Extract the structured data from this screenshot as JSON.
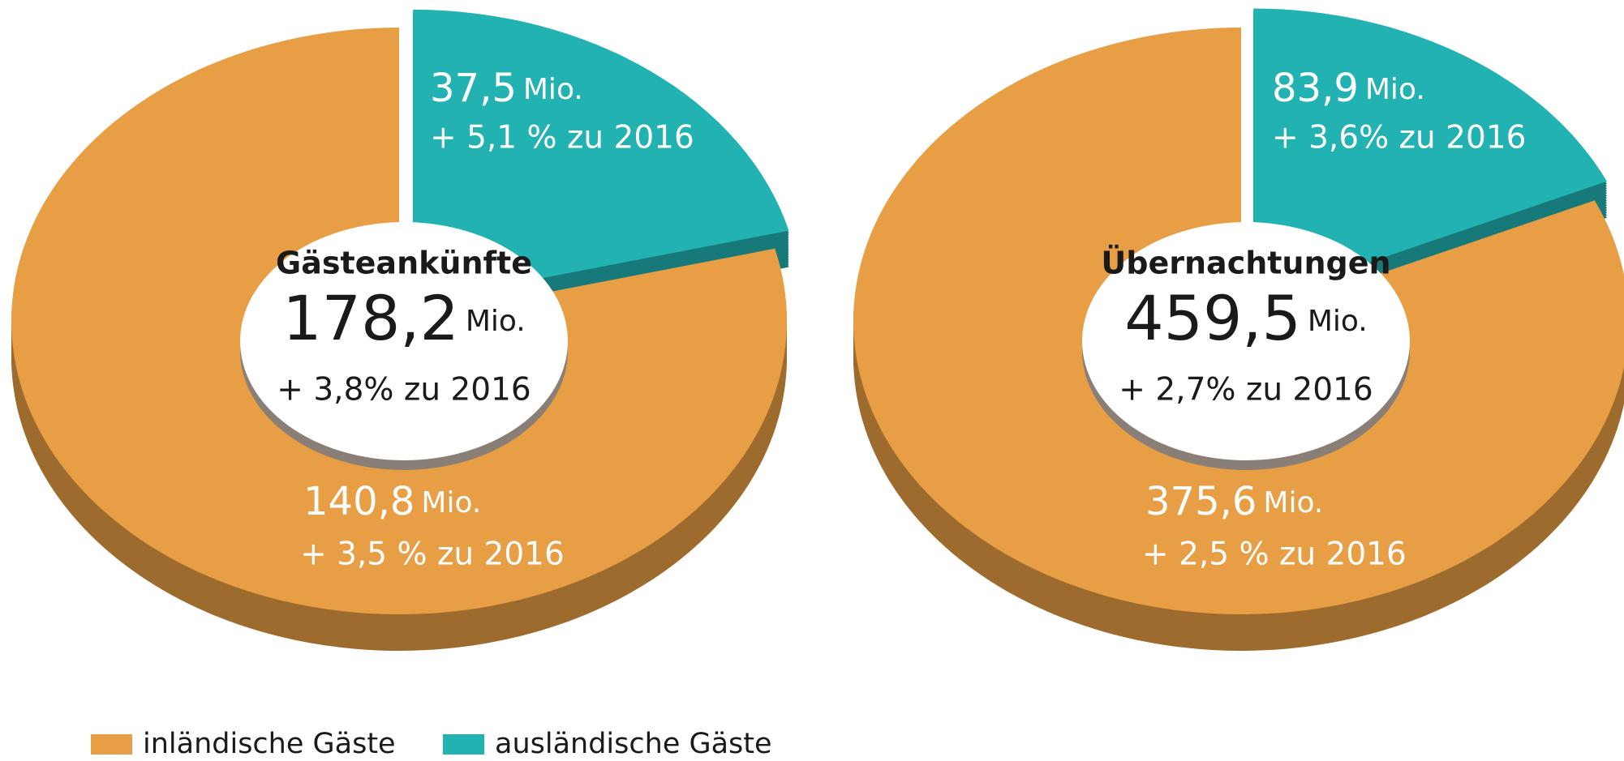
{
  "chart_data": [
    {
      "type": "pie",
      "title": "Gästeankünfte",
      "total": 178.2,
      "total_label": "178,2",
      "unit": "Mio.",
      "change_label": "+ 3,8% zu 2016",
      "categories": [
        "inländische Gäste",
        "ausländische Gäste"
      ],
      "values": [
        140.8,
        37.5
      ],
      "value_labels": [
        "140,8",
        "37,5"
      ],
      "change_labels": [
        "+ 3,5 % zu 2016",
        "+ 5,1 % zu 2016"
      ],
      "colors": [
        "#e89e45",
        "#22b2b2"
      ]
    },
    {
      "type": "pie",
      "title": "Übernachtungen",
      "total": 459.5,
      "total_label": "459,5",
      "unit": "Mio.",
      "change_label": "+ 2,7% zu 2016",
      "categories": [
        "inländische Gäste",
        "ausländische Gäste"
      ],
      "values": [
        375.6,
        83.9
      ],
      "value_labels": [
        "375,6",
        "83,9"
      ],
      "change_labels": [
        "+ 2,5 % zu 2016",
        "+ 3,6% zu 2016"
      ],
      "colors": [
        "#e89e45",
        "#22b2b2"
      ]
    }
  ]
}
